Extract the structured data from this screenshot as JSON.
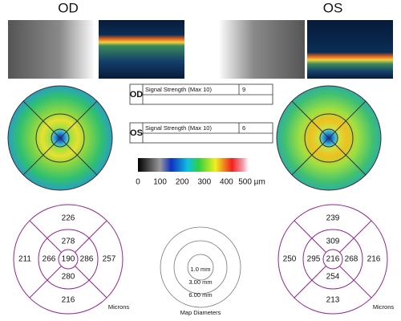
{
  "header": {
    "left": "OD",
    "right": "OS"
  },
  "signal": [
    {
      "eye": "OD",
      "label": "Signal Strength (Max 10)",
      "value": 9
    },
    {
      "eye": "OS",
      "label": "Signal Strength (Max 10)",
      "value": 6
    }
  ],
  "color_scale": {
    "ticks": [
      0,
      100,
      200,
      300,
      400,
      "500 µm"
    ]
  },
  "od": {
    "sectors": {
      "outer_top": 226,
      "inner_top": 278,
      "outer_left": 211,
      "inner_left": 266,
      "center": 190,
      "inner_right": 286,
      "outer_right": 257,
      "inner_bottom": 280,
      "outer_bottom": 216
    },
    "unit": "Microns"
  },
  "os": {
    "sectors": {
      "outer_top": 239,
      "inner_top": 309,
      "outer_left": 250,
      "inner_left": 295,
      "center": 216,
      "inner_right": 268,
      "outer_right": 216,
      "inner_bottom": 254,
      "outer_bottom": 213
    },
    "unit": "Microns"
  },
  "map_diameters": {
    "inner": "1.0 mm",
    "middle": "3.00 mm",
    "outer": "6.00 mm",
    "caption": "Map Diameters"
  }
}
